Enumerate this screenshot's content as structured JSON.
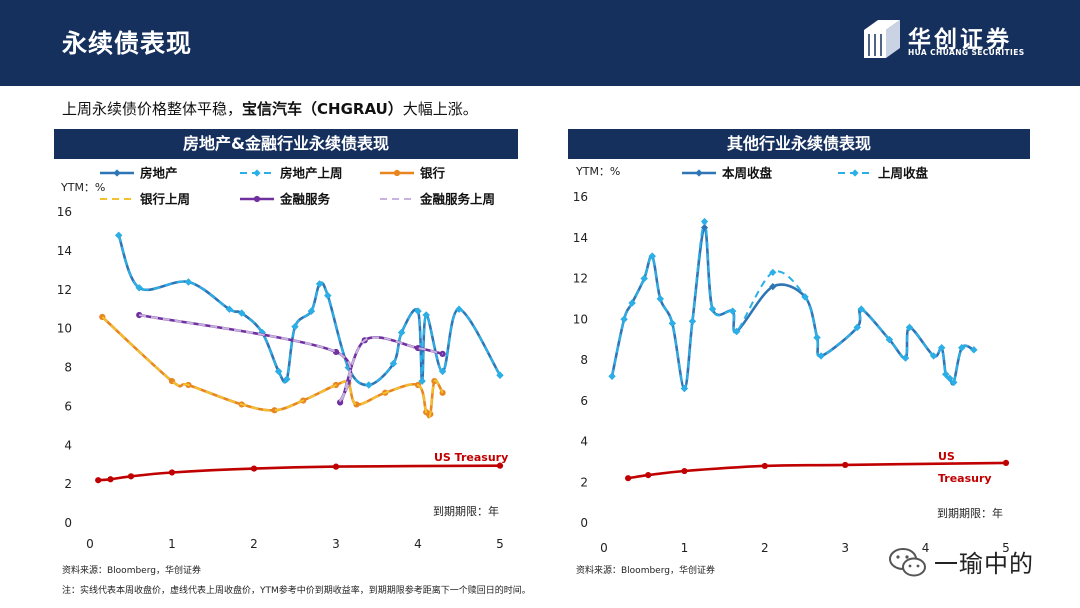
{
  "header": {
    "title": "永续债表现",
    "brand": "华创证券",
    "brand_sub": "HUA CHUANG SECURITIES"
  },
  "summary": {
    "pre": "上周永续债价格整体平稳，",
    "bold": "宝信汽车（CHGRAU）",
    "post": "大幅上涨。"
  },
  "footer": {
    "source_left": "资料来源：Bloomberg，华创证券",
    "source_right": "资料来源：Bloomberg，华创证券",
    "note": "注：实线代表本周收盘价，虚线代表上周收盘价，YTM参考中价到期收益率，到期期限参考距离下一个赎回日的时间。",
    "watermark": "一瑜中的"
  },
  "colors": {
    "navy": "#16305e",
    "blue": "#2e75b6",
    "lightblue": "#2ab0e6",
    "orange": "#e8851f",
    "yellow": "#f2c12e",
    "purple": "#7030a0",
    "lilac": "#c7b3dd",
    "red": "#c00000"
  },
  "chart_data": [
    {
      "type": "line",
      "title": "房地产&金融行业永续债表现",
      "ylabel": "YTM：%",
      "xlabel": "到期期限：年",
      "xlim": [
        0,
        5
      ],
      "ylim": [
        0,
        16
      ],
      "xticks": [
        "0",
        "1",
        "2",
        "3",
        "4",
        "5"
      ],
      "yticks": [
        "0",
        "2",
        "4",
        "6",
        "8",
        "10",
        "12",
        "14",
        "16"
      ],
      "annotation": "US Treasury",
      "series": [
        {
          "name": "房地产",
          "color": "#2e75b6",
          "dash": false,
          "marker": true,
          "points": [
            [
              0.35,
              14.8
            ],
            [
              0.6,
              12.1
            ],
            [
              1.2,
              12.4
            ],
            [
              1.7,
              11.0
            ],
            [
              1.85,
              10.8
            ],
            [
              2.1,
              9.8
            ],
            [
              2.3,
              7.8
            ],
            [
              2.4,
              7.4
            ],
            [
              2.5,
              10.1
            ],
            [
              2.7,
              10.9
            ],
            [
              2.8,
              12.3
            ],
            [
              2.9,
              11.7
            ],
            [
              3.15,
              8.0
            ],
            [
              3.4,
              7.1
            ],
            [
              3.7,
              8.2
            ],
            [
              3.8,
              9.8
            ],
            [
              4.0,
              10.9
            ],
            [
              4.05,
              7.3
            ],
            [
              4.1,
              10.7
            ],
            [
              4.3,
              7.8
            ],
            [
              4.5,
              11.0
            ],
            [
              5.0,
              7.6
            ]
          ]
        },
        {
          "name": "房地产上周",
          "color": "#2ab0e6",
          "dash": true,
          "marker": true,
          "points": [
            [
              0.35,
              14.8
            ],
            [
              0.6,
              12.1
            ],
            [
              1.2,
              12.4
            ],
            [
              1.7,
              11.0
            ],
            [
              1.85,
              10.8
            ],
            [
              2.1,
              9.8
            ],
            [
              2.3,
              7.8
            ],
            [
              2.4,
              7.4
            ],
            [
              2.5,
              10.1
            ],
            [
              2.7,
              10.9
            ],
            [
              2.8,
              12.3
            ],
            [
              2.9,
              11.7
            ],
            [
              3.15,
              8.0
            ],
            [
              3.4,
              7.1
            ],
            [
              3.7,
              8.2
            ],
            [
              3.8,
              9.8
            ],
            [
              4.0,
              10.9
            ],
            [
              4.05,
              7.3
            ],
            [
              4.1,
              10.7
            ],
            [
              4.3,
              7.8
            ],
            [
              4.5,
              11.0
            ],
            [
              5.0,
              7.6
            ]
          ]
        },
        {
          "name": "银行",
          "color": "#e8851f",
          "dash": false,
          "marker": true,
          "points": [
            [
              0.15,
              10.6
            ],
            [
              1.0,
              7.3
            ],
            [
              1.2,
              7.1
            ],
            [
              1.85,
              6.1
            ],
            [
              2.25,
              5.8
            ],
            [
              2.6,
              6.3
            ],
            [
              3.0,
              7.1
            ],
            [
              3.15,
              7.2
            ],
            [
              3.25,
              6.1
            ],
            [
              3.6,
              6.7
            ],
            [
              4.0,
              7.1
            ],
            [
              4.1,
              5.7
            ],
            [
              4.15,
              5.6
            ],
            [
              4.2,
              7.3
            ],
            [
              4.3,
              6.7
            ]
          ]
        },
        {
          "name": "银行上周",
          "color": "#f2c12e",
          "dash": true,
          "marker": false,
          "points": [
            [
              0.15,
              10.6
            ],
            [
              1.0,
              7.3
            ],
            [
              1.2,
              7.1
            ],
            [
              1.85,
              6.1
            ],
            [
              2.25,
              5.8
            ],
            [
              2.6,
              6.3
            ],
            [
              3.0,
              7.1
            ],
            [
              3.15,
              7.2
            ],
            [
              3.25,
              6.1
            ],
            [
              3.6,
              6.7
            ],
            [
              4.0,
              7.1
            ],
            [
              4.1,
              5.7
            ],
            [
              4.15,
              5.6
            ],
            [
              4.2,
              7.3
            ],
            [
              4.3,
              6.7
            ]
          ]
        },
        {
          "name": "金融服务",
          "color": "#7030a0",
          "dash": false,
          "marker": true,
          "points": [
            [
              0.6,
              10.7
            ],
            [
              3.0,
              8.8
            ],
            [
              3.05,
              6.2
            ],
            [
              3.35,
              9.4
            ],
            [
              4.0,
              9.0
            ],
            [
              4.3,
              8.7
            ]
          ]
        },
        {
          "name": "金融服务上周",
          "color": "#c7b3dd",
          "dash": true,
          "marker": false,
          "points": [
            [
              0.6,
              10.7
            ],
            [
              3.0,
              8.8
            ],
            [
              3.05,
              6.2
            ],
            [
              3.35,
              9.4
            ],
            [
              4.0,
              9.0
            ],
            [
              4.3,
              8.7
            ]
          ]
        },
        {
          "name": "US Treasury",
          "color": "#c00000",
          "dash": false,
          "marker": true,
          "inLegend": false,
          "points": [
            [
              0.1,
              2.2
            ],
            [
              0.25,
              2.25
            ],
            [
              0.5,
              2.4
            ],
            [
              1.0,
              2.6
            ],
            [
              2.0,
              2.8
            ],
            [
              3.0,
              2.9
            ],
            [
              5.0,
              2.95
            ]
          ]
        }
      ]
    },
    {
      "type": "line",
      "title": "其他行业永续债表现",
      "ylabel": "YTM：%",
      "xlabel": "到期期限：年",
      "xlim": [
        0,
        5
      ],
      "ylim": [
        0,
        16
      ],
      "xticks": [
        "0",
        "1",
        "2",
        "3",
        "4",
        "5"
      ],
      "yticks": [
        "0",
        "2",
        "4",
        "6",
        "8",
        "10",
        "12",
        "14",
        "16"
      ],
      "annotation": "US Treasury",
      "series": [
        {
          "name": "本周收盘",
          "color": "#2e75b6",
          "dash": false,
          "marker": true,
          "points": [
            [
              0.1,
              7.2
            ],
            [
              0.25,
              10.0
            ],
            [
              0.35,
              10.8
            ],
            [
              0.5,
              12.0
            ],
            [
              0.6,
              13.1
            ],
            [
              0.7,
              11.0
            ],
            [
              0.85,
              9.8
            ],
            [
              1.0,
              6.6
            ],
            [
              1.1,
              9.9
            ],
            [
              1.25,
              14.5
            ],
            [
              1.35,
              10.5
            ],
            [
              1.6,
              10.4
            ],
            [
              1.65,
              9.4
            ],
            [
              2.1,
              11.6
            ],
            [
              2.5,
              11.1
            ],
            [
              2.65,
              9.1
            ],
            [
              2.7,
              8.2
            ],
            [
              3.15,
              9.6
            ],
            [
              3.2,
              10.5
            ],
            [
              3.55,
              9.0
            ],
            [
              3.75,
              8.1
            ],
            [
              3.8,
              9.6
            ],
            [
              4.1,
              8.2
            ],
            [
              4.2,
              8.6
            ],
            [
              4.25,
              7.3
            ],
            [
              4.3,
              7.1
            ],
            [
              4.35,
              6.9
            ],
            [
              4.45,
              8.6
            ],
            [
              4.6,
              8.5
            ]
          ]
        },
        {
          "name": "上周收盘",
          "color": "#2ab0e6",
          "dash": true,
          "marker": true,
          "points": [
            [
              0.1,
              7.2
            ],
            [
              0.25,
              10.0
            ],
            [
              0.35,
              10.8
            ],
            [
              0.5,
              12.0
            ],
            [
              0.6,
              13.1
            ],
            [
              0.7,
              11.0
            ],
            [
              0.85,
              9.8
            ],
            [
              1.0,
              6.6
            ],
            [
              1.1,
              9.9
            ],
            [
              1.25,
              14.8
            ],
            [
              1.35,
              10.5
            ],
            [
              1.6,
              10.4
            ],
            [
              1.65,
              9.4
            ],
            [
              2.1,
              12.3
            ],
            [
              2.5,
              11.1
            ],
            [
              2.65,
              9.1
            ],
            [
              2.7,
              8.2
            ],
            [
              3.15,
              9.6
            ],
            [
              3.2,
              10.5
            ],
            [
              3.55,
              9.0
            ],
            [
              3.75,
              8.1
            ],
            [
              3.8,
              9.6
            ],
            [
              4.1,
              8.2
            ],
            [
              4.2,
              8.6
            ],
            [
              4.25,
              7.3
            ],
            [
              4.3,
              7.1
            ],
            [
              4.35,
              6.9
            ],
            [
              4.45,
              8.6
            ],
            [
              4.6,
              8.5
            ]
          ]
        },
        {
          "name": "US Treasury",
          "color": "#c00000",
          "dash": false,
          "marker": true,
          "inLegend": false,
          "points": [
            [
              0.3,
              2.2
            ],
            [
              0.55,
              2.35
            ],
            [
              1.0,
              2.55
            ],
            [
              2.0,
              2.8
            ],
            [
              3.0,
              2.85
            ],
            [
              5.0,
              2.95
            ]
          ]
        }
      ]
    }
  ]
}
